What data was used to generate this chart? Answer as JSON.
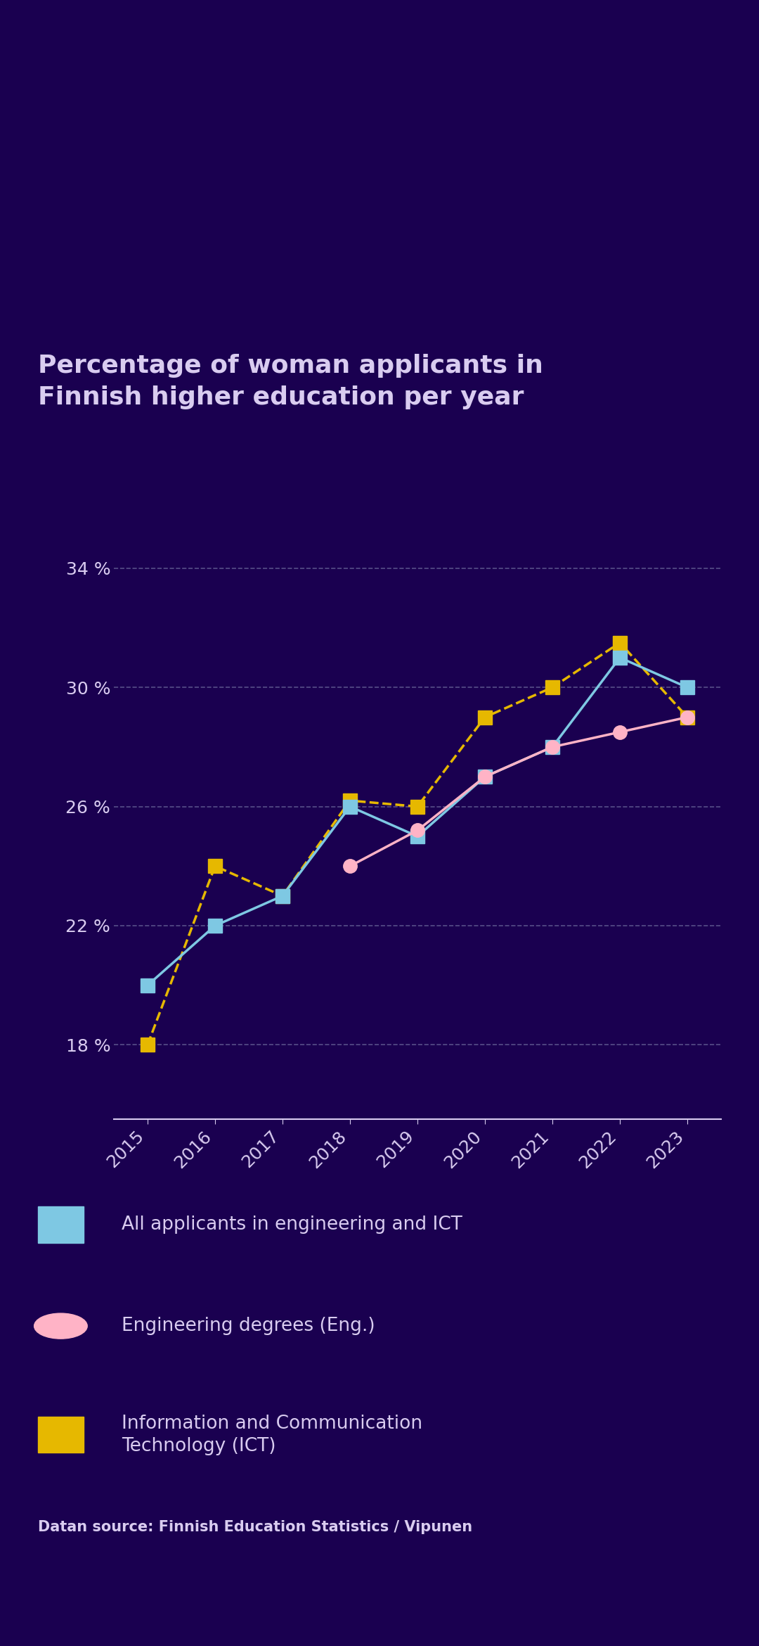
{
  "title": "Percentage of woman applicants in\nFinnish higher education per year",
  "background_color": "#1a0050",
  "text_color": "#d9ccf0",
  "years": [
    2015,
    2016,
    2017,
    2018,
    2019,
    2020,
    2021,
    2022,
    2023
  ],
  "series": {
    "all_applicants": {
      "label": "All applicants in engineering and ICT",
      "values": [
        20.0,
        22.0,
        23.0,
        26.0,
        25.0,
        27.0,
        28.0,
        31.0,
        30.0
      ],
      "color": "#7ec8e3",
      "linestyle": "-",
      "marker": "s",
      "markersize": 14,
      "linewidth": 2.5
    },
    "engineering": {
      "label": "Engineering degrees (Eng.)",
      "values": [
        null,
        null,
        null,
        24.0,
        25.2,
        27.0,
        28.0,
        28.5,
        29.0
      ],
      "color": "#ffb3c6",
      "linestyle": "-",
      "marker": "o",
      "markersize": 14,
      "linewidth": 2.5
    },
    "ict": {
      "label": "Information and Communication\nTechnology (ICT)",
      "values": [
        18.0,
        24.0,
        23.0,
        26.2,
        26.0,
        29.0,
        30.0,
        31.5,
        29.0
      ],
      "color": "#e6b800",
      "linestyle": "--",
      "marker": "s",
      "markersize": 14,
      "linewidth": 2.5
    }
  },
  "yticks": [
    18,
    22,
    26,
    30,
    34
  ],
  "ylim": [
    15.5,
    36.5
  ],
  "xlim": [
    2014.5,
    2023.5
  ],
  "grid_color": "#7070a0",
  "source_text": "Datan source: Finnish Education Statistics / Vipunen",
  "title_fontsize": 26,
  "legend_fontsize": 19,
  "tick_fontsize": 18,
  "source_fontsize": 15
}
